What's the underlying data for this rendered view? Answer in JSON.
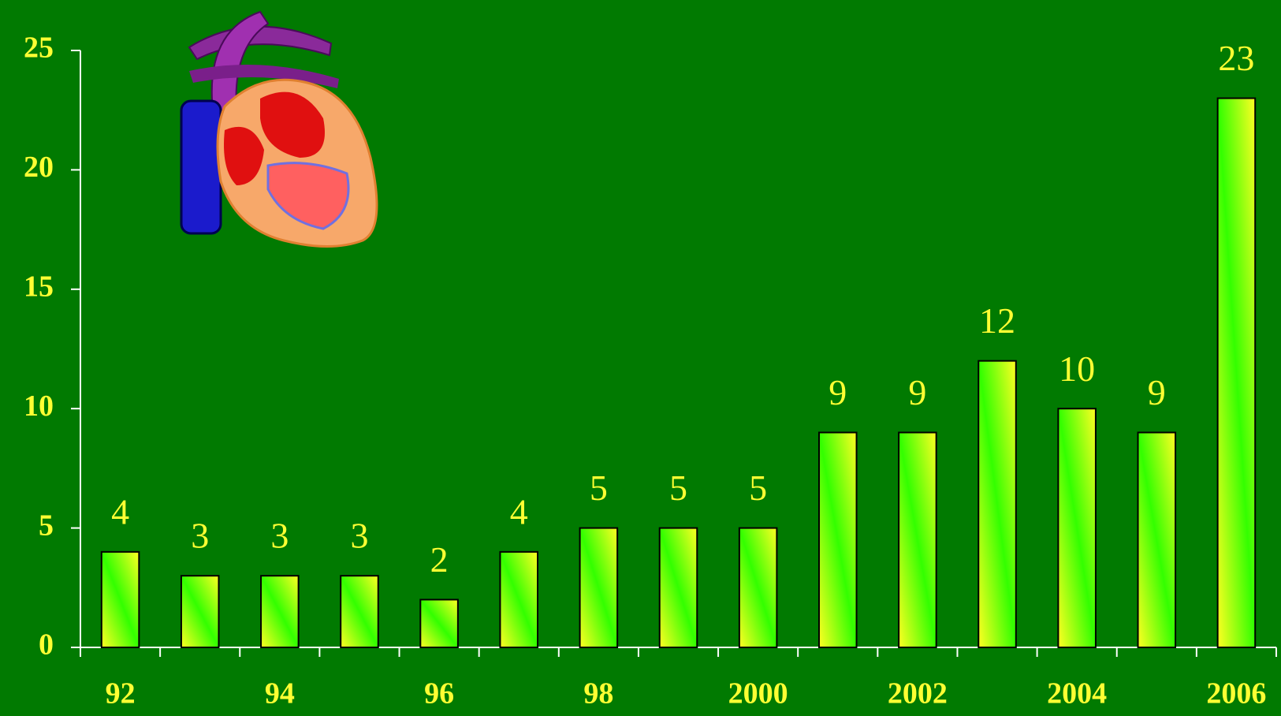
{
  "chart_data": {
    "type": "bar",
    "categories": [
      "92",
      null,
      "94",
      null,
      "96",
      null,
      "98",
      null,
      "2000",
      null,
      "2002",
      null,
      "2004",
      null,
      "2006"
    ],
    "values": [
      4,
      3,
      3,
      3,
      2,
      4,
      5,
      5,
      5,
      9,
      9,
      12,
      10,
      9,
      23
    ],
    "ylim": [
      0,
      25
    ],
    "yticks": [
      0,
      5,
      10,
      15,
      20,
      25
    ],
    "color": "#33ff00"
  }
}
